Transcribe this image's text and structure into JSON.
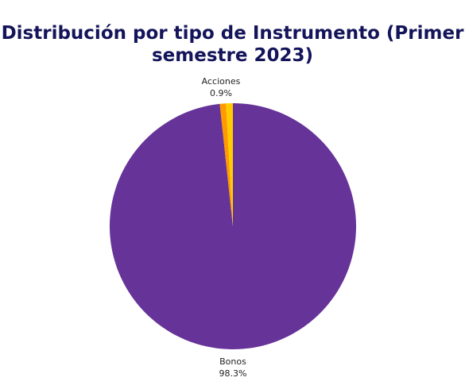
{
  "chart_data": {
    "type": "pie",
    "title_lines": [
      "Distribución por tipo de Instrumento (Primer",
      "semestre 2023)"
    ],
    "slices": [
      {
        "label": "Bonos",
        "value": 98.3,
        "display": "98.3%",
        "color": "#663399"
      },
      {
        "label": "",
        "value": 0.8,
        "display": "",
        "color": "#ff9900"
      },
      {
        "label": "Acciones",
        "value": 0.9,
        "display": "0.9%",
        "color": "#ffcc00"
      }
    ],
    "legend": "none"
  }
}
